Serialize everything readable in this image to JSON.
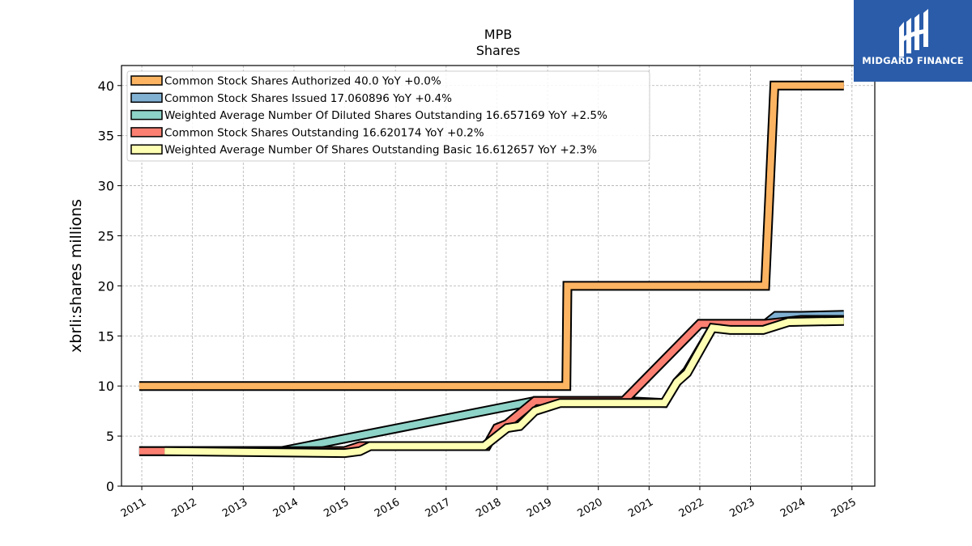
{
  "chart_data": {
    "type": "line",
    "title": "MPB",
    "subtitle": "Shares",
    "xlabel": "",
    "ylabel": "xbrli:shares millions",
    "ylim": [
      0,
      42
    ],
    "yticks": [
      0,
      5,
      10,
      15,
      20,
      25,
      30,
      35,
      40
    ],
    "xlim": [
      2010.6,
      2025.45
    ],
    "xticks": [
      "2011",
      "2012",
      "2013",
      "2014",
      "2015",
      "2016",
      "2017",
      "2018",
      "2019",
      "2020",
      "2021",
      "2022",
      "2023",
      "2024",
      "2025"
    ],
    "grid": true,
    "legend_position": "top-left",
    "series": [
      {
        "name": "Common Stock Shares Authorized",
        "legend": "Common Stock Shares Authorized  40.0 YoY +0.0%",
        "color": "#fdb462",
        "x": [
          2010.95,
          2019.37,
          2019.39,
          2023.29,
          2023.47,
          2024.84
        ],
        "values": [
          10.0,
          10.0,
          20.0,
          20.0,
          40.0,
          40.0
        ]
      },
      {
        "name": "Common Stock Shares Issued",
        "legend": "Common Stock Shares Issued  17.060896 YoY +0.4%",
        "color": "#80b1d3",
        "x": [
          2010.95,
          2015.0,
          2015.3,
          2017.8,
          2018.0,
          2018.2,
          2018.75,
          2020.5,
          2022.0,
          2023.3,
          2023.5,
          2024.0,
          2024.84
        ],
        "values": [
          3.5,
          3.5,
          4.0,
          4.0,
          5.8,
          6.2,
          8.5,
          8.5,
          16.2,
          16.2,
          17.0,
          17.0,
          17.1
        ]
      },
      {
        "name": "Weighted Average Number Of Diluted Shares Outstanding",
        "legend": "Weighted Average Number Of Diluted Shares Outstanding  16.657169 YoY +2.5%",
        "color": "#8dd3c7",
        "x": [
          2011.45,
          2013.75,
          2018.75,
          2019.3,
          2020.5,
          2021.3,
          2021.55,
          2021.75,
          2022.25,
          2022.6,
          2023.25,
          2023.75,
          2024.84
        ],
        "values": [
          3.5,
          3.5,
          8.5,
          8.5,
          8.5,
          8.3,
          10.4,
          11.5,
          15.8,
          15.8,
          16.0,
          16.4,
          16.6
        ]
      },
      {
        "name": "Common Stock Shares Outstanding",
        "legend": "Common Stock Shares Outstanding  16.620174 YoY +0.2%",
        "color": "#fb8072",
        "x": [
          2010.95,
          2015.0,
          2015.3,
          2017.8,
          2018.0,
          2018.2,
          2018.75,
          2020.5,
          2022.0,
          2023.3,
          2024.0,
          2024.84
        ],
        "values": [
          3.5,
          3.5,
          4.0,
          4.0,
          5.8,
          6.2,
          8.5,
          8.5,
          16.2,
          16.2,
          16.6,
          16.6
        ]
      },
      {
        "name": "Weighted Average Number Of Shares Outstanding Basic",
        "legend": "Weighted Average Number Of Shares Outstanding Basic  16.612657 YoY +2.3%",
        "color": "#ffffb3",
        "x": [
          2011.45,
          2015.0,
          2015.3,
          2015.5,
          2017.75,
          2018.2,
          2018.45,
          2018.75,
          2019.25,
          2020.5,
          2021.3,
          2021.55,
          2021.75,
          2022.25,
          2022.6,
          2023.25,
          2023.75,
          2024.84
        ],
        "values": [
          3.5,
          3.3,
          3.5,
          4.0,
          4.0,
          5.8,
          6.0,
          7.5,
          8.3,
          8.3,
          8.3,
          10.4,
          11.3,
          15.8,
          15.6,
          15.6,
          16.4,
          16.5
        ]
      }
    ]
  },
  "logo": {
    "text": "MIDGARD FINANCE",
    "bg_color": "#2a5caa"
  }
}
